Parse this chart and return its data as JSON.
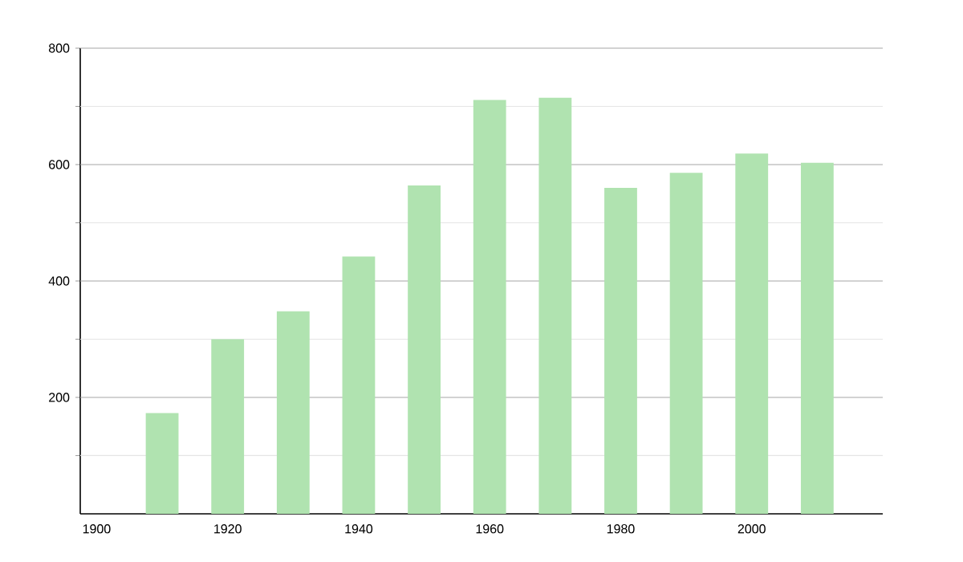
{
  "chart_data": {
    "type": "bar",
    "x": [
      1910,
      1920,
      1930,
      1940,
      1950,
      1960,
      1970,
      1980,
      1990,
      2000,
      2010
    ],
    "values": [
      173,
      300,
      348,
      442,
      564,
      711,
      715,
      560,
      586,
      619,
      603
    ],
    "color": "#b0e3b0",
    "xlim": [
      1897.5,
      2020
    ],
    "xticks": [
      1900,
      1920,
      1940,
      1960,
      1980,
      2000
    ],
    "ylim": [
      0,
      800
    ],
    "yticks": [
      {
        "value": 100,
        "label": null
      },
      200,
      {
        "value": 300,
        "label": null
      },
      400,
      {
        "value": 500,
        "label": null
      },
      600,
      {
        "value": 700,
        "label": null
      },
      800
    ],
    "grid": "y"
  }
}
